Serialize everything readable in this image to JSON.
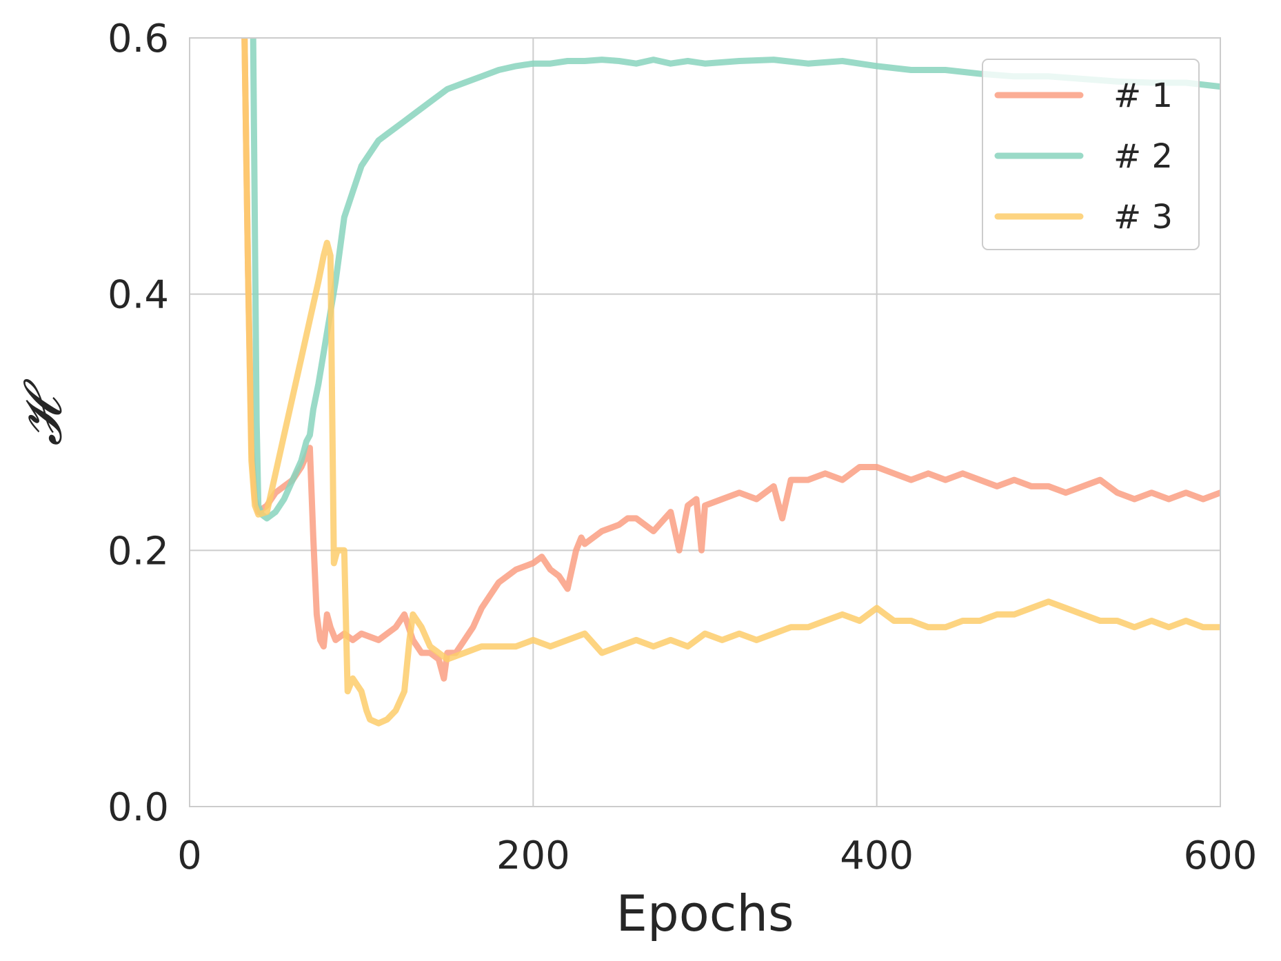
{
  "chart_data": {
    "type": "line",
    "title": "",
    "xlabel": "Epochs",
    "ylabel": "𝓗",
    "xlim": [
      0,
      600
    ],
    "ylim": [
      0,
      0.6
    ],
    "xticks": [
      0,
      200,
      400,
      600
    ],
    "xtick_labels": [
      "0",
      "200",
      "400",
      "600"
    ],
    "yticks": [
      0,
      0.2,
      0.4,
      0.6
    ],
    "ytick_labels": [
      "0.0",
      "0.2",
      "0.4",
      "0.6"
    ],
    "grid": true,
    "legend_position": "top-right",
    "series": [
      {
        "name": "# 1",
        "color": "#FA9F82",
        "x": [
          32,
          34,
          36,
          38,
          40,
          45,
          50,
          55,
          60,
          65,
          70,
          72,
          74,
          76,
          78,
          80,
          82,
          85,
          90,
          95,
          100,
          110,
          120,
          125,
          130,
          135,
          140,
          145,
          148,
          150,
          155,
          160,
          165,
          170,
          175,
          180,
          185,
          190,
          200,
          205,
          210,
          215,
          220,
          225,
          228,
          230,
          240,
          250,
          255,
          260,
          270,
          280,
          285,
          290,
          295,
          298,
          300,
          310,
          320,
          330,
          340,
          345,
          350,
          360,
          370,
          380,
          390,
          400,
          410,
          420,
          430,
          440,
          450,
          460,
          470,
          480,
          490,
          500,
          510,
          520,
          530,
          540,
          550,
          560,
          570,
          580,
          590,
          600
        ],
        "y": [
          0.6,
          0.42,
          0.28,
          0.24,
          0.23,
          0.235,
          0.245,
          0.25,
          0.255,
          0.265,
          0.28,
          0.21,
          0.15,
          0.13,
          0.125,
          0.15,
          0.14,
          0.13,
          0.135,
          0.13,
          0.135,
          0.13,
          0.14,
          0.15,
          0.13,
          0.12,
          0.12,
          0.115,
          0.1,
          0.12,
          0.12,
          0.13,
          0.14,
          0.155,
          0.165,
          0.175,
          0.18,
          0.185,
          0.19,
          0.195,
          0.185,
          0.18,
          0.17,
          0.2,
          0.21,
          0.205,
          0.215,
          0.22,
          0.225,
          0.225,
          0.215,
          0.23,
          0.2,
          0.235,
          0.24,
          0.2,
          0.235,
          0.24,
          0.245,
          0.24,
          0.25,
          0.225,
          0.255,
          0.255,
          0.26,
          0.255,
          0.265,
          0.265,
          0.26,
          0.255,
          0.26,
          0.255,
          0.26,
          0.255,
          0.25,
          0.255,
          0.25,
          0.25,
          0.245,
          0.25,
          0.255,
          0.245,
          0.24,
          0.245,
          0.24,
          0.245,
          0.24,
          0.245
        ]
      },
      {
        "name": "# 2",
        "color": "#88D3BD",
        "x": [
          37,
          38,
          39,
          40,
          42,
          45,
          50,
          55,
          60,
          65,
          68,
          70,
          72,
          75,
          80,
          85,
          88,
          90,
          95,
          100,
          105,
          110,
          115,
          120,
          125,
          130,
          140,
          150,
          160,
          170,
          180,
          190,
          200,
          210,
          220,
          230,
          240,
          250,
          260,
          270,
          280,
          290,
          300,
          320,
          340,
          360,
          380,
          400,
          420,
          440,
          460,
          480,
          500,
          520,
          540,
          560,
          580,
          600
        ],
        "y": [
          0.6,
          0.45,
          0.3,
          0.235,
          0.228,
          0.225,
          0.23,
          0.24,
          0.255,
          0.27,
          0.285,
          0.29,
          0.31,
          0.33,
          0.37,
          0.41,
          0.44,
          0.46,
          0.48,
          0.5,
          0.51,
          0.52,
          0.525,
          0.53,
          0.535,
          0.54,
          0.55,
          0.56,
          0.565,
          0.57,
          0.575,
          0.578,
          0.58,
          0.58,
          0.582,
          0.582,
          0.583,
          0.582,
          0.58,
          0.583,
          0.58,
          0.582,
          0.58,
          0.582,
          0.583,
          0.58,
          0.582,
          0.578,
          0.575,
          0.575,
          0.572,
          0.57,
          0.57,
          0.568,
          0.566,
          0.565,
          0.565,
          0.562
        ]
      },
      {
        "name": "# 3",
        "color": "#FDCC6B",
        "x": [
          32,
          34,
          36,
          38,
          40,
          45,
          50,
          55,
          60,
          65,
          70,
          75,
          78,
          80,
          82,
          84,
          86,
          90,
          92,
          95,
          100,
          103,
          105,
          110,
          115,
          120,
          125,
          128,
          130,
          135,
          140,
          145,
          150,
          160,
          170,
          180,
          190,
          200,
          210,
          220,
          230,
          240,
          250,
          260,
          270,
          280,
          290,
          300,
          310,
          320,
          330,
          340,
          350,
          360,
          370,
          380,
          390,
          400,
          410,
          420,
          430,
          440,
          450,
          460,
          470,
          480,
          490,
          500,
          510,
          520,
          530,
          540,
          550,
          560,
          570,
          580,
          590,
          600
        ],
        "y": [
          0.6,
          0.42,
          0.27,
          0.235,
          0.228,
          0.23,
          0.26,
          0.29,
          0.32,
          0.35,
          0.38,
          0.41,
          0.43,
          0.44,
          0.43,
          0.19,
          0.2,
          0.2,
          0.09,
          0.1,
          0.09,
          0.075,
          0.068,
          0.065,
          0.068,
          0.075,
          0.09,
          0.13,
          0.15,
          0.14,
          0.125,
          0.12,
          0.115,
          0.12,
          0.125,
          0.125,
          0.125,
          0.13,
          0.125,
          0.13,
          0.135,
          0.12,
          0.125,
          0.13,
          0.125,
          0.13,
          0.125,
          0.135,
          0.13,
          0.135,
          0.13,
          0.135,
          0.14,
          0.14,
          0.145,
          0.15,
          0.145,
          0.155,
          0.145,
          0.145,
          0.14,
          0.14,
          0.145,
          0.145,
          0.15,
          0.15,
          0.155,
          0.16,
          0.155,
          0.15,
          0.145,
          0.145,
          0.14,
          0.145,
          0.14,
          0.145,
          0.14,
          0.14
        ]
      }
    ]
  }
}
